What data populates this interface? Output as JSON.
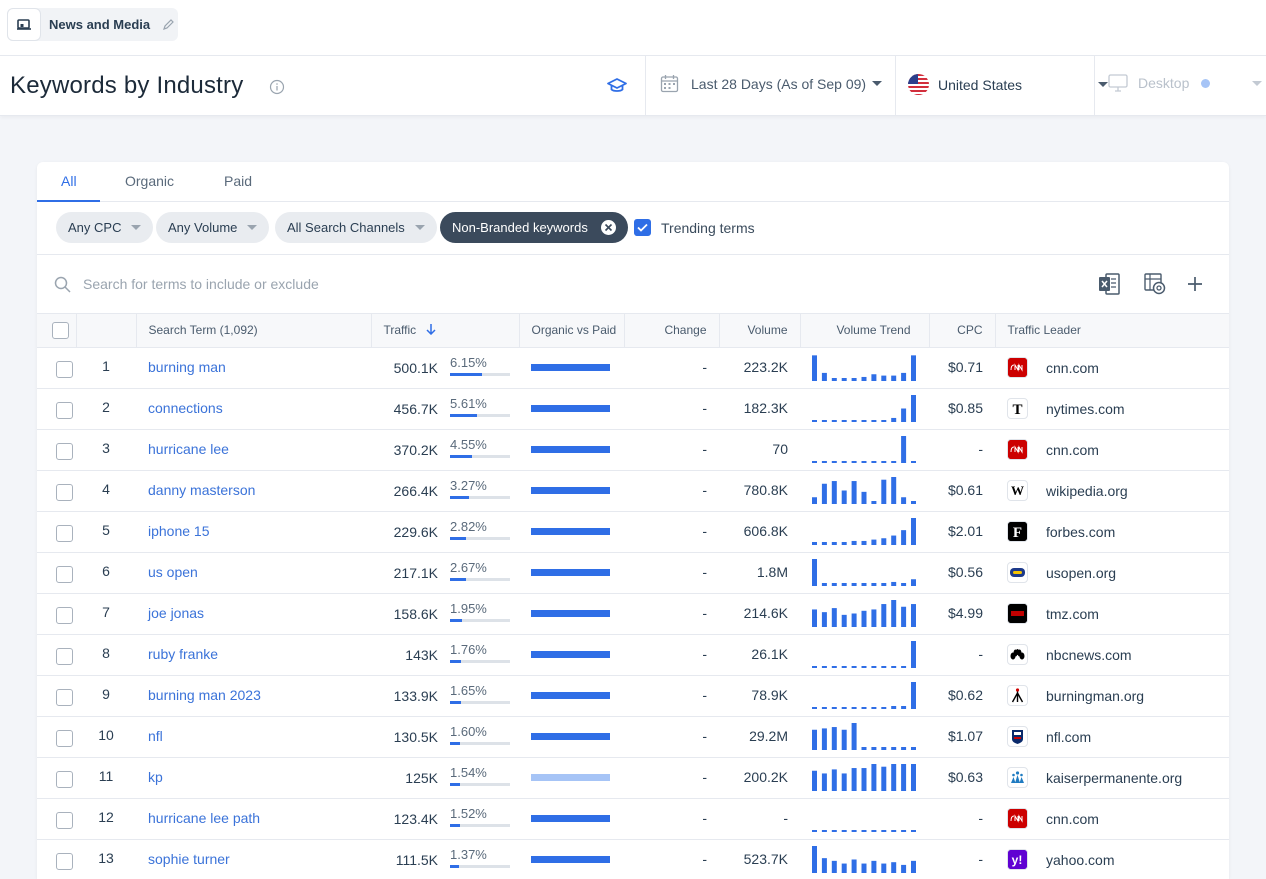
{
  "workspace": {
    "name": "News and Media"
  },
  "header": {
    "title": "Keywords by Industry",
    "date_range": "Last 28 Days (As of Sep 09)",
    "country": "United States",
    "device": "Desktop"
  },
  "tabs": [
    {
      "label": "All",
      "active": true
    },
    {
      "label": "Organic",
      "active": false
    },
    {
      "label": "Paid",
      "active": false
    }
  ],
  "filters": {
    "cpc": "Any CPC",
    "volume": "Any Volume",
    "channels": "All Search Channels",
    "branded": "Non-Branded keywords",
    "trending_label": "Trending terms",
    "trending_checked": true
  },
  "search": {
    "placeholder": "Search for terms to include or exclude"
  },
  "columns": {
    "term": "Search Term (1,092)",
    "traffic": "Traffic",
    "ovp": "Organic vs Paid",
    "change": "Change",
    "volume": "Volume",
    "trend": "Volume Trend",
    "cpc": "CPC",
    "leader": "Traffic Leader"
  },
  "rows": [
    {
      "rank": "1",
      "term": "burning man",
      "traffic": "500.1K",
      "share": "6.15%",
      "share_frac": 0.06,
      "ovp_light": false,
      "change": "-",
      "volume": "223.2K",
      "trend": [
        0.95,
        0.3,
        0.1,
        0.1,
        0.1,
        0.15,
        0.25,
        0.2,
        0.2,
        0.3,
        0.95
      ],
      "cpc": "$0.71",
      "domain": "cnn.com",
      "fav": "cnn"
    },
    {
      "rank": "2",
      "term": "connections",
      "traffic": "456.7K",
      "share": "5.61%",
      "share_frac": 0.05,
      "ovp_light": false,
      "change": "-",
      "volume": "182.3K",
      "trend": [
        0,
        0,
        0,
        0,
        0,
        0,
        0,
        0,
        0.15,
        0.5,
        1.0
      ],
      "cpc": "$0.85",
      "domain": "nytimes.com",
      "fav": "nyt"
    },
    {
      "rank": "3",
      "term": "hurricane lee",
      "traffic": "370.2K",
      "share": "4.55%",
      "share_frac": 0.04,
      "ovp_light": false,
      "change": "-",
      "volume": "70",
      "trend": [
        0,
        0,
        0,
        0,
        0,
        0,
        0,
        0,
        0,
        1.0,
        0
      ],
      "cpc": "-",
      "domain": "cnn.com",
      "fav": "cnn"
    },
    {
      "rank": "4",
      "term": "danny masterson",
      "traffic": "266.4K",
      "share": "3.27%",
      "share_frac": 0.033,
      "ovp_light": false,
      "change": "-",
      "volume": "780.8K",
      "trend": [
        0.25,
        0.75,
        0.85,
        0.5,
        0.85,
        0.45,
        0.1,
        0.9,
        1.0,
        0.25,
        0.1
      ],
      "cpc": "$0.61",
      "domain": "wikipedia.org",
      "fav": "wiki"
    },
    {
      "rank": "5",
      "term": "iphone 15",
      "traffic": "229.6K",
      "share": "2.82%",
      "share_frac": 0.028,
      "ovp_light": false,
      "change": "-",
      "volume": "606.8K",
      "trend": [
        0.05,
        0.05,
        0.1,
        0.1,
        0.15,
        0.15,
        0.2,
        0.25,
        0.35,
        0.55,
        1.0
      ],
      "cpc": "$2.01",
      "domain": "forbes.com",
      "fav": "forbes"
    },
    {
      "rank": "6",
      "term": "us open",
      "traffic": "217.1K",
      "share": "2.67%",
      "share_frac": 0.027,
      "ovp_light": false,
      "change": "-",
      "volume": "1.8M",
      "trend": [
        1.0,
        0.05,
        0.05,
        0.05,
        0.05,
        0.05,
        0.05,
        0.05,
        0.15,
        0.05,
        0.25
      ],
      "cpc": "$0.56",
      "domain": "usopen.org",
      "fav": "usopen"
    },
    {
      "rank": "7",
      "term": "joe jonas",
      "traffic": "158.6K",
      "share": "1.95%",
      "share_frac": 0.02,
      "ovp_light": false,
      "change": "-",
      "volume": "214.6K",
      "trend": [
        0.65,
        0.55,
        0.7,
        0.45,
        0.5,
        0.6,
        0.65,
        0.85,
        1.0,
        0.75,
        0.85
      ],
      "cpc": "$4.99",
      "domain": "tmz.com",
      "fav": "tmz"
    },
    {
      "rank": "8",
      "term": "ruby franke",
      "traffic": "143K",
      "share": "1.76%",
      "share_frac": 0.018,
      "ovp_light": false,
      "change": "-",
      "volume": "26.1K",
      "trend": [
        0,
        0,
        0,
        0,
        0,
        0,
        0,
        0,
        0,
        0,
        1.0
      ],
      "cpc": "-",
      "domain": "nbcnews.com",
      "fav": "nbc"
    },
    {
      "rank": "9",
      "term": "burning man 2023",
      "traffic": "133.9K",
      "share": "1.65%",
      "share_frac": 0.017,
      "ovp_light": false,
      "change": "-",
      "volume": "78.9K",
      "trend": [
        0,
        0,
        0,
        0,
        0,
        0,
        0,
        0,
        0.1,
        0.1,
        1.0
      ],
      "cpc": "$0.62",
      "domain": "burningman.org",
      "fav": "bm"
    },
    {
      "rank": "10",
      "term": "nfl",
      "traffic": "130.5K",
      "share": "1.60%",
      "share_frac": 0.016,
      "ovp_light": false,
      "change": "-",
      "volume": "29.2M",
      "trend": [
        0.75,
        0.8,
        0.85,
        0.75,
        1.0,
        0.05,
        0.05,
        0.05,
        0.05,
        0.05,
        0.05
      ],
      "cpc": "$1.07",
      "domain": "nfl.com",
      "fav": "nfl"
    },
    {
      "rank": "11",
      "term": "kp",
      "traffic": "125K",
      "share": "1.54%",
      "share_frac": 0.015,
      "ovp_light": true,
      "change": "-",
      "volume": "200.2K",
      "trend": [
        0.75,
        0.65,
        0.8,
        0.65,
        0.85,
        0.85,
        1.0,
        0.9,
        1.0,
        1.0,
        1.0
      ],
      "cpc": "$0.63",
      "domain": "kaiserpermanente.org",
      "fav": "kp"
    },
    {
      "rank": "12",
      "term": "hurricane lee path",
      "traffic": "123.4K",
      "share": "1.52%",
      "share_frac": 0.015,
      "ovp_light": false,
      "change": "-",
      "volume": "-",
      "trend": [
        0,
        0,
        0,
        0,
        0,
        0,
        0,
        0,
        0,
        0,
        0
      ],
      "cpc": "-",
      "domain": "cnn.com",
      "fav": "cnn"
    },
    {
      "rank": "13",
      "term": "sophie turner",
      "traffic": "111.5K",
      "share": "1.37%",
      "share_frac": 0.014,
      "ovp_light": false,
      "change": "-",
      "volume": "523.7K",
      "trend": [
        1.0,
        0.55,
        0.45,
        0.35,
        0.5,
        0.35,
        0.45,
        0.35,
        0.4,
        0.3,
        0.45
      ],
      "cpc": "-",
      "domain": "yahoo.com",
      "fav": "yahoo"
    }
  ],
  "colors": {
    "accent": "#2f6ee6",
    "link": "#3b73d9",
    "light_bar": "#a6c4f6"
  }
}
